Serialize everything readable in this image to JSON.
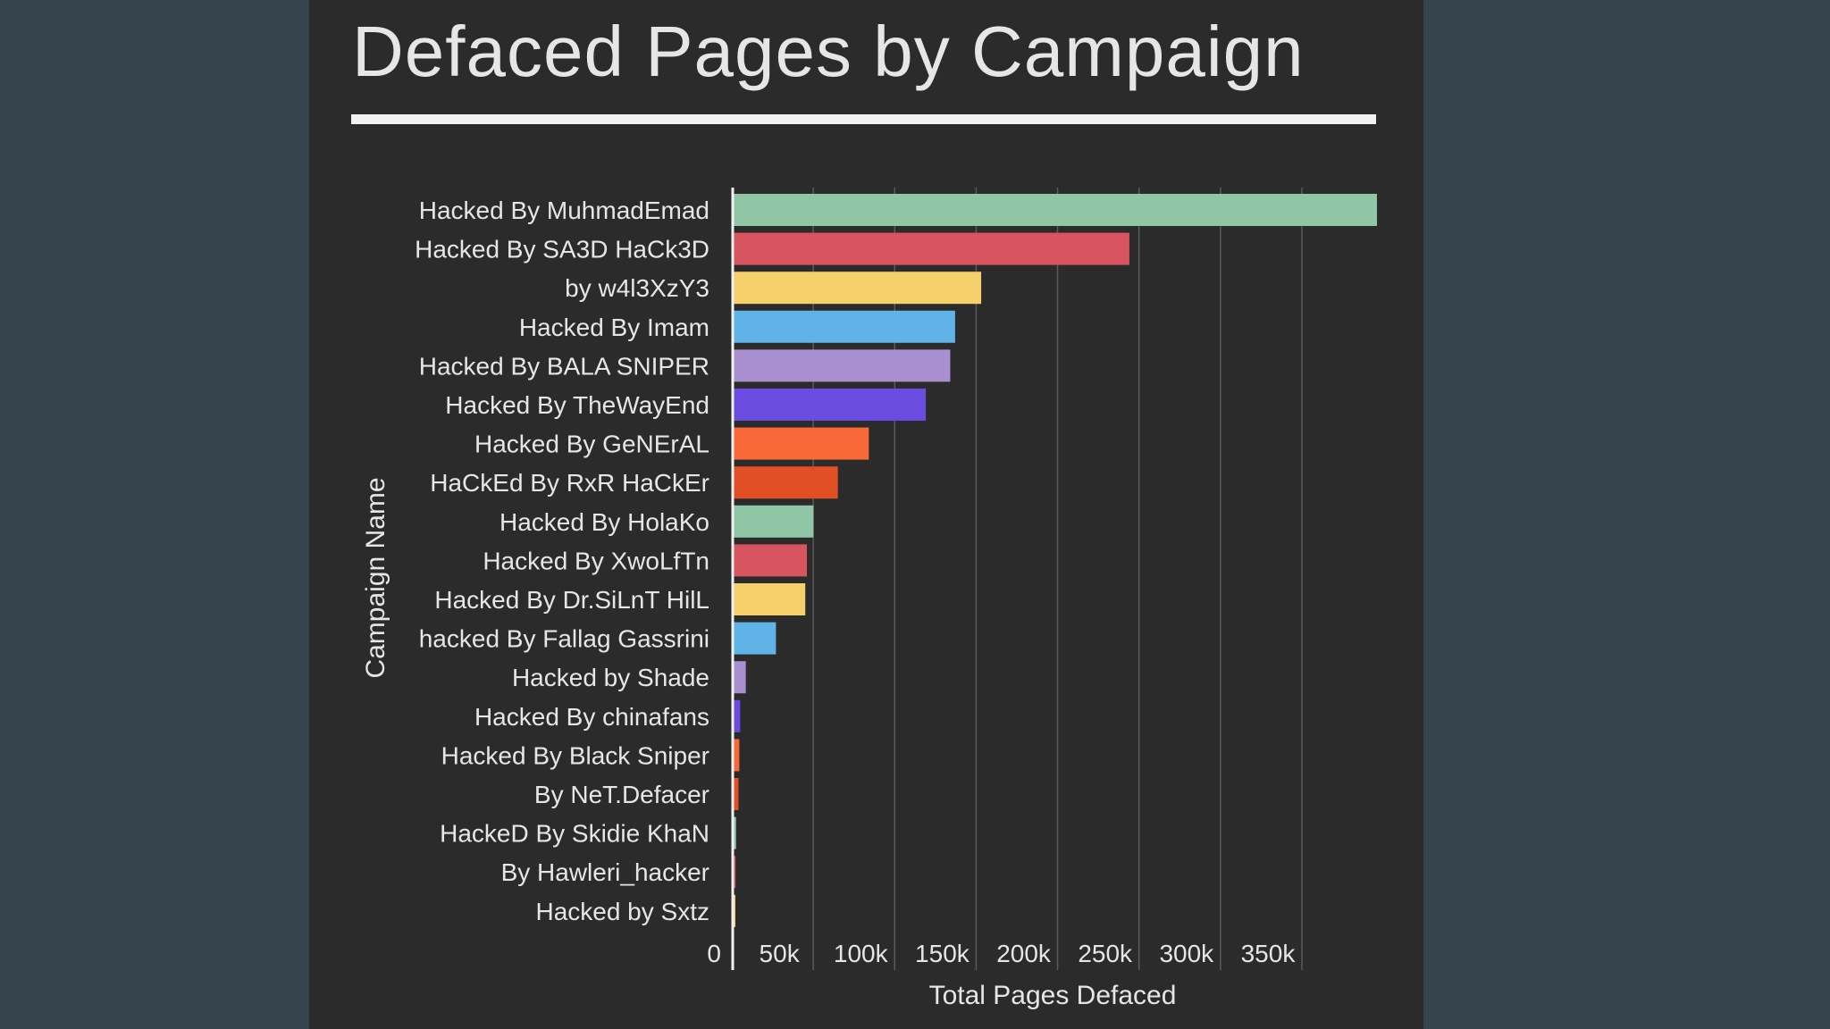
{
  "title": "Defaced Pages by Campaign",
  "chart_data": {
    "type": "bar",
    "orientation": "horizontal",
    "xlabel": "Total Pages Defaced",
    "ylabel": "Campaign Name",
    "xlim": [
      0,
      395000
    ],
    "xticks": [
      0,
      50000,
      100000,
      150000,
      200000,
      250000,
      300000,
      350000
    ],
    "xtick_labels": [
      "0",
      "50k",
      "100k",
      "150k",
      "200k",
      "250k",
      "300k",
      "350k"
    ],
    "grid": true,
    "categories": [
      "Hacked By MuhmadEmad",
      "Hacked By SA3D HaCk3D",
      "by w4l3XzY3",
      "Hacked By Imam",
      "Hacked By BALA SNIPER",
      "Hacked By TheWayEnd",
      "Hacked By GeNErAL",
      "HaCkEd By RxR HaCkEr",
      "Hacked By HolaKo",
      "Hacked By XwoLfTn",
      "Hacked By Dr.SiLnT HilL",
      "hacked By Fallag Gassrini",
      "Hacked by Shade",
      "Hacked By chinafans",
      "Hacked By Black Sniper",
      "By NeT.Defacer",
      "HackeD By Skidie KhaN",
      "By Hawleri_hacker",
      "Hacked by Sxtz"
    ],
    "values": [
      395000,
      243000,
      152000,
      136000,
      133000,
      118000,
      83000,
      64000,
      49000,
      45000,
      44000,
      26000,
      7500,
      4000,
      3500,
      3000,
      1500,
      1200,
      1000
    ],
    "colors": [
      "#8fc7a6",
      "#d8545e",
      "#f5cf6a",
      "#5fb3e6",
      "#aa8fd0",
      "#6a4de0",
      "#f86838",
      "#e24e26",
      "#8fc7a6",
      "#d8545e",
      "#f5cf6a",
      "#5fb3e6",
      "#aa8fd0",
      "#6a4de0",
      "#f86838",
      "#e24e26",
      "#8fc7a6",
      "#d8545e",
      "#f5cf6a"
    ]
  },
  "colors": {
    "page_background": "#36444e",
    "panel_background": "#2b2b2b",
    "text": "#e6e6e6",
    "grid": "#5a5a5a"
  }
}
